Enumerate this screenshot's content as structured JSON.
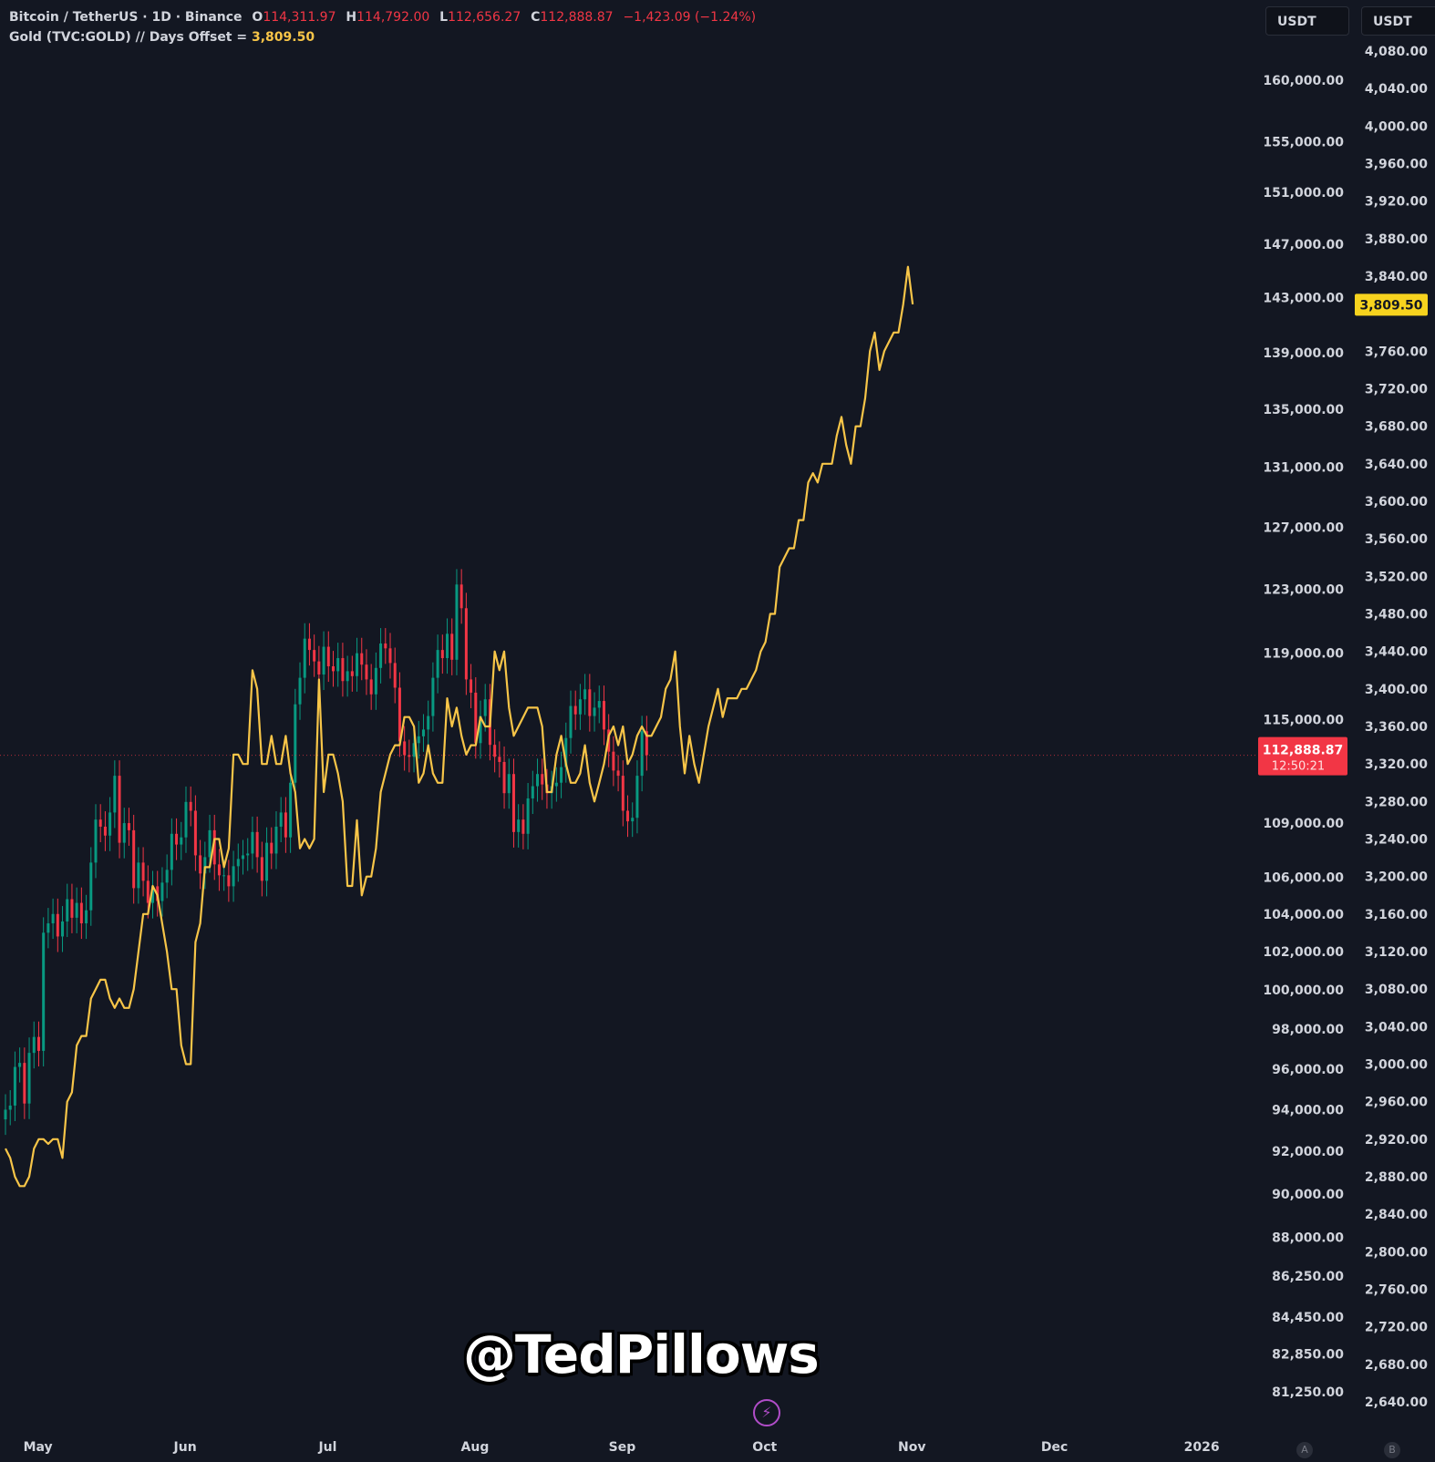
{
  "legend": {
    "symbol": "Bitcoin / TetherUS · 1D · Binance",
    "o_key": "O",
    "o_val": "114,311.97",
    "h_key": "H",
    "h_val": "114,792.00",
    "l_key": "L",
    "l_val": "112,656.27",
    "c_key": "C",
    "c_val": "112,888.87",
    "change": "−1,423.09 (−1.24%)",
    "overlay": "Gold (TVC:GOLD) // Days Offset = ",
    "overlay_val": "3,809.50"
  },
  "unit_tabs": [
    "USDT",
    "USDT"
  ],
  "watermark": "@TedPillows",
  "scale_buttons": [
    "A",
    "B"
  ],
  "colors": {
    "background": "#131722",
    "candle_up": "#089981",
    "candle_down": "#f23645",
    "gold_line": "#f7c548",
    "price_tag": "#f23645"
  },
  "chart_data": {
    "type": "line",
    "x_labels": [
      "May",
      "Jun",
      "Jul",
      "Aug",
      "Sep",
      "Oct",
      "Nov",
      "Dec",
      "2026"
    ],
    "btc_axis": {
      "unit": "USDT",
      "ticks": [
        "160,000.00",
        "155,000.00",
        "151,000.00",
        "147,000.00",
        "143,000.00",
        "139,000.00",
        "135,000.00",
        "131,000.00",
        "127,000.00",
        "123,000.00",
        "119,000.00",
        "115,000.00",
        "109,000.00",
        "106,000.00",
        "104,000.00",
        "102,000.00",
        "100,000.00",
        "98,000.00",
        "96,000.00",
        "94,000.00",
        "92,000.00",
        "90,000.00",
        "88,000.00",
        "86,250.00",
        "84,450.00",
        "82,850.00",
        "81,250.00"
      ],
      "tick_values": [
        160000,
        155000,
        151000,
        147000,
        143000,
        139000,
        135000,
        131000,
        127000,
        123000,
        119000,
        115000,
        109000,
        106000,
        104000,
        102000,
        100000,
        98000,
        96000,
        94000,
        92000,
        90000,
        88000,
        86250,
        84450,
        82850,
        81250
      ],
      "scale": "log",
      "last_price": "112,888.87",
      "countdown": "12:50:21"
    },
    "gold_axis": {
      "unit": "USDT",
      "ticks": [
        "4,080.00",
        "4,040.00",
        "4,000.00",
        "3,960.00",
        "3,920.00",
        "3,880.00",
        "3,840.00",
        "3,760.00",
        "3,720.00",
        "3,680.00",
        "3,640.00",
        "3,600.00",
        "3,560.00",
        "3,520.00",
        "3,480.00",
        "3,440.00",
        "3,400.00",
        "3,360.00",
        "3,320.00",
        "3,280.00",
        "3,240.00",
        "3,200.00",
        "3,160.00",
        "3,120.00",
        "3,080.00",
        "3,040.00",
        "3,000.00",
        "2,960.00",
        "2,920.00",
        "2,880.00",
        "2,840.00",
        "2,800.00",
        "2,760.00",
        "2,720.00",
        "2,680.00",
        "2,640.00"
      ],
      "tick_values": [
        4080,
        4040,
        4000,
        3960,
        3920,
        3880,
        3840,
        3760,
        3720,
        3680,
        3640,
        3600,
        3560,
        3520,
        3480,
        3440,
        3400,
        3360,
        3320,
        3280,
        3240,
        3200,
        3160,
        3120,
        3080,
        3040,
        3000,
        2960,
        2920,
        2880,
        2840,
        2800,
        2760,
        2720,
        2680,
        2640
      ],
      "last_value": "3,809.50"
    },
    "btc_series": {
      "name": "Bitcoin / TetherUS",
      "start_date": "2025-04-28",
      "closes": [
        94000,
        94200,
        96100,
        96300,
        94300,
        96800,
        97600,
        96900,
        103000,
        103500,
        104000,
        102800,
        103600,
        104800,
        103800,
        104600,
        103500,
        104200,
        106800,
        109200,
        108800,
        108300,
        109600,
        111700,
        107900,
        109000,
        108600,
        105400,
        106800,
        105800,
        104600,
        105500,
        104700,
        105700,
        106400,
        108400,
        107800,
        108200,
        110200,
        109700,
        107200,
        106200,
        107100,
        108600,
        106700,
        106100,
        106100,
        105500,
        106600,
        107000,
        107200,
        107300,
        108500,
        107100,
        105800,
        107900,
        107300,
        108800,
        109600,
        108200,
        111300,
        115900,
        117500,
        119900,
        119200,
        118500,
        117700,
        119400,
        118200,
        117900,
        118700,
        117300,
        117900,
        117600,
        119000,
        118300,
        117400,
        116500,
        118100,
        119600,
        119300,
        118400,
        116900,
        113700,
        112900,
        112800,
        113600,
        114000,
        114400,
        115200,
        117500,
        119200,
        118700,
        120200,
        118600,
        123300,
        121800,
        117400,
        116600,
        113600,
        115200,
        116200,
        113500,
        112800,
        112500,
        110700,
        111800,
        108500,
        109200,
        108400,
        110400,
        111100,
        111800,
        111200,
        110700,
        111100,
        111300,
        112200,
        113900,
        115800,
        115300,
        116200,
        116800,
        115200,
        115700,
        116100,
        114400,
        113100,
        112000,
        111700,
        109700,
        109100,
        109300,
        111700,
        114300,
        112900
      ]
    },
    "gold_series": {
      "name": "Gold (TVC:GOLD)",
      "start_date": "2025-04-28",
      "closes": [
        2910,
        2900,
        2880,
        2870,
        2870,
        2880,
        2910,
        2920,
        2920,
        2915,
        2920,
        2920,
        2900,
        2960,
        2970,
        3020,
        3030,
        3030,
        3070,
        3080,
        3090,
        3090,
        3070,
        3060,
        3070,
        3060,
        3060,
        3080,
        3120,
        3160,
        3160,
        3190,
        3180,
        3150,
        3120,
        3080,
        3080,
        3020,
        3000,
        3000,
        3130,
        3150,
        3210,
        3210,
        3240,
        3240,
        3210,
        3230,
        3330,
        3330,
        3320,
        3320,
        3420,
        3400,
        3320,
        3320,
        3350,
        3320,
        3320,
        3350,
        3310,
        3290,
        3230,
        3240,
        3230,
        3240,
        3410,
        3290,
        3330,
        3330,
        3310,
        3280,
        3190,
        3190,
        3260,
        3180,
        3200,
        3200,
        3230,
        3290,
        3310,
        3330,
        3340,
        3340,
        3370,
        3370,
        3360,
        3300,
        3310,
        3340,
        3310,
        3300,
        3300,
        3390,
        3360,
        3380,
        3350,
        3330,
        3340,
        3340,
        3370,
        3360,
        3360,
        3440,
        3420,
        3440,
        3380,
        3350,
        3360,
        3370,
        3380,
        3380,
        3380,
        3360,
        3290,
        3290,
        3330,
        3350,
        3320,
        3300,
        3300,
        3310,
        3340,
        3300,
        3280,
        3300,
        3320,
        3350,
        3360,
        3340,
        3360,
        3320,
        3330,
        3350,
        3360,
        3350,
        3350,
        3360,
        3370,
        3400,
        3410,
        3440,
        3360,
        3310,
        3350,
        3320,
        3300,
        3330,
        3360,
        3380,
        3400,
        3370,
        3390,
        3390,
        3390,
        3400,
        3400,
        3410,
        3420,
        3440,
        3450,
        3480,
        3480,
        3530,
        3540,
        3550,
        3550,
        3580,
        3580,
        3620,
        3630,
        3620,
        3640,
        3640,
        3640,
        3670,
        3690,
        3660,
        3640,
        3680,
        3680,
        3710,
        3760,
        3780,
        3740,
        3760,
        3770,
        3780,
        3780,
        3810,
        3850,
        3810
      ]
    }
  }
}
